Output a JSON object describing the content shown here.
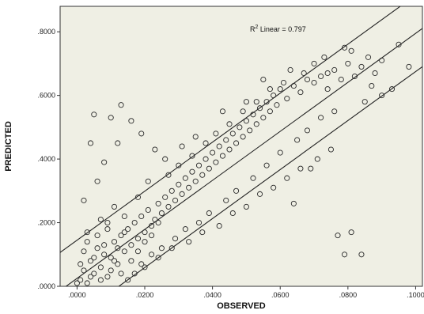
{
  "chart_data": {
    "type": "scatter",
    "xlabel": "OBSERVED",
    "ylabel": "PREDICTED",
    "xlim": [
      -0.005,
      0.102
    ],
    "ylim": [
      0,
      0.88
    ],
    "x_ticks": [
      {
        "value": 0.0,
        "label": ".0000"
      },
      {
        "value": 0.02,
        "label": ".0200"
      },
      {
        "value": 0.04,
        "label": ".0400"
      },
      {
        "value": 0.06,
        "label": ".0600"
      },
      {
        "value": 0.08,
        "label": ".0800"
      },
      {
        "value": 0.1,
        "label": ".1000"
      }
    ],
    "y_ticks": [
      {
        "value": 0.0,
        "label": ".0000"
      },
      {
        "value": 0.2,
        "label": ".2000"
      },
      {
        "value": 0.4,
        "label": ".4000"
      },
      {
        "value": 0.6,
        "label": ".6000"
      },
      {
        "value": 0.8,
        "label": ".8000"
      }
    ],
    "annotation": {
      "prefix": "R",
      "superscript": "2",
      "text": " Linear = 0.797"
    },
    "fit": {
      "slope": 7.7,
      "intercept": 0.025,
      "band_offset": 0.12
    },
    "grid": false,
    "colors": {
      "plot_background": "#efefe4",
      "marker": "#2a2a2a",
      "line": "#222222"
    },
    "points": [
      [
        0.001,
        0.02
      ],
      [
        0.002,
        0.05
      ],
      [
        0.003,
        0.01
      ],
      [
        0.004,
        0.08
      ],
      [
        0.005,
        0.04
      ],
      [
        0.006,
        0.12
      ],
      [
        0.007,
        0.06
      ],
      [
        0.008,
        0.1
      ],
      [
        0.009,
        0.03
      ],
      [
        0.01,
        0.09
      ],
      [
        0.011,
        0.14
      ],
      [
        0.012,
        0.07
      ],
      [
        0.013,
        0.16
      ],
      [
        0.014,
        0.11
      ],
      [
        0.015,
        0.18
      ],
      [
        0.016,
        0.13
      ],
      [
        0.017,
        0.2
      ],
      [
        0.018,
        0.15
      ],
      [
        0.019,
        0.22
      ],
      [
        0.02,
        0.17
      ],
      [
        0.021,
        0.24
      ],
      [
        0.022,
        0.19
      ],
      [
        0.023,
        0.21
      ],
      [
        0.024,
        0.26
      ],
      [
        0.025,
        0.23
      ],
      [
        0.026,
        0.28
      ],
      [
        0.027,
        0.25
      ],
      [
        0.028,
        0.3
      ],
      [
        0.029,
        0.27
      ],
      [
        0.03,
        0.32
      ],
      [
        0.031,
        0.29
      ],
      [
        0.032,
        0.34
      ],
      [
        0.033,
        0.31
      ],
      [
        0.034,
        0.36
      ],
      [
        0.035,
        0.33
      ],
      [
        0.036,
        0.38
      ],
      [
        0.037,
        0.35
      ],
      [
        0.038,
        0.4
      ],
      [
        0.039,
        0.37
      ],
      [
        0.04,
        0.42
      ],
      [
        0.041,
        0.39
      ],
      [
        0.042,
        0.44
      ],
      [
        0.043,
        0.41
      ],
      [
        0.044,
        0.46
      ],
      [
        0.045,
        0.43
      ],
      [
        0.046,
        0.48
      ],
      [
        0.047,
        0.45
      ],
      [
        0.048,
        0.5
      ],
      [
        0.049,
        0.47
      ],
      [
        0.05,
        0.52
      ],
      [
        0.051,
        0.49
      ],
      [
        0.052,
        0.54
      ],
      [
        0.053,
        0.51
      ],
      [
        0.054,
        0.56
      ],
      [
        0.055,
        0.53
      ],
      [
        0.056,
        0.58
      ],
      [
        0.057,
        0.55
      ],
      [
        0.058,
        0.6
      ],
      [
        0.059,
        0.57
      ],
      [
        0.06,
        0.62
      ],
      [
        0.062,
        0.59
      ],
      [
        0.064,
        0.63
      ],
      [
        0.066,
        0.61
      ],
      [
        0.068,
        0.65
      ],
      [
        0.07,
        0.64
      ],
      [
        0.072,
        0.66
      ],
      [
        0.074,
        0.62
      ],
      [
        0.076,
        0.68
      ],
      [
        0.078,
        0.65
      ],
      [
        0.08,
        0.7
      ],
      [
        0.082,
        0.66
      ],
      [
        0.084,
        0.69
      ],
      [
        0.086,
        0.72
      ],
      [
        0.088,
        0.67
      ],
      [
        0.09,
        0.71
      ],
      [
        0.095,
        0.76
      ],
      [
        0.098,
        0.69
      ],
      [
        0.093,
        0.62
      ],
      [
        0.079,
        0.75
      ],
      [
        0.081,
        0.74
      ],
      [
        0.002,
        0.27
      ],
      [
        0.004,
        0.45
      ],
      [
        0.005,
        0.54
      ],
      [
        0.01,
        0.53
      ],
      [
        0.013,
        0.57
      ],
      [
        0.016,
        0.52
      ],
      [
        0.008,
        0.39
      ],
      [
        0.006,
        0.33
      ],
      [
        0.012,
        0.45
      ],
      [
        0.019,
        0.48
      ],
      [
        0.023,
        0.43
      ],
      [
        0.026,
        0.4
      ],
      [
        0.031,
        0.44
      ],
      [
        0.035,
        0.47
      ],
      [
        0.043,
        0.55
      ],
      [
        0.05,
        0.58
      ],
      [
        0.055,
        0.65
      ],
      [
        0.063,
        0.68
      ],
      [
        0.07,
        0.7
      ],
      [
        0.073,
        0.72
      ],
      [
        0.02,
        0.06
      ],
      [
        0.024,
        0.09
      ],
      [
        0.028,
        0.12
      ],
      [
        0.033,
        0.14
      ],
      [
        0.037,
        0.17
      ],
      [
        0.042,
        0.19
      ],
      [
        0.046,
        0.23
      ],
      [
        0.05,
        0.25
      ],
      [
        0.054,
        0.29
      ],
      [
        0.058,
        0.31
      ],
      [
        0.062,
        0.34
      ],
      [
        0.066,
        0.37
      ],
      [
        0.071,
        0.4
      ],
      [
        0.075,
        0.43
      ],
      [
        0.077,
        0.16
      ],
      [
        0.079,
        0.1
      ],
      [
        0.084,
        0.1
      ],
      [
        0.081,
        0.17
      ],
      [
        0.064,
        0.26
      ],
      [
        0.069,
        0.37
      ],
      [
        0.015,
        0.02
      ],
      [
        0.017,
        0.04
      ],
      [
        0.019,
        0.07
      ],
      [
        0.022,
        0.1
      ],
      [
        0.025,
        0.12
      ],
      [
        0.029,
        0.15
      ],
      [
        0.032,
        0.18
      ],
      [
        0.036,
        0.2
      ],
      [
        0.039,
        0.23
      ],
      [
        0.044,
        0.27
      ],
      [
        0.047,
        0.3
      ],
      [
        0.052,
        0.34
      ],
      [
        0.056,
        0.38
      ],
      [
        0.06,
        0.42
      ],
      [
        0.065,
        0.46
      ],
      [
        0.068,
        0.49
      ],
      [
        0.072,
        0.53
      ],
      [
        0.076,
        0.55
      ],
      [
        0.085,
        0.58
      ],
      [
        0.09,
        0.6
      ],
      [
        0.003,
        0.17
      ],
      [
        0.007,
        0.21
      ],
      [
        0.009,
        0.18
      ],
      [
        0.011,
        0.25
      ],
      [
        0.014,
        0.22
      ],
      [
        0.018,
        0.28
      ],
      [
        0.021,
        0.33
      ],
      [
        0.027,
        0.35
      ],
      [
        0.03,
        0.38
      ],
      [
        0.034,
        0.41
      ],
      [
        0.038,
        0.45
      ],
      [
        0.041,
        0.48
      ],
      [
        0.045,
        0.51
      ],
      [
        0.049,
        0.55
      ],
      [
        0.053,
        0.58
      ],
      [
        0.057,
        0.62
      ],
      [
        0.061,
        0.64
      ],
      [
        0.067,
        0.67
      ],
      [
        0.074,
        0.67
      ],
      [
        0.087,
        0.63
      ],
      [
        0.0,
        0.01
      ],
      [
        0.001,
        0.07
      ],
      [
        0.002,
        0.11
      ],
      [
        0.003,
        0.14
      ],
      [
        0.004,
        0.03
      ],
      [
        0.005,
        0.09
      ],
      [
        0.006,
        0.16
      ],
      [
        0.007,
        0.02
      ],
      [
        0.008,
        0.13
      ],
      [
        0.009,
        0.2
      ],
      [
        0.01,
        0.05
      ],
      [
        0.011,
        0.08
      ],
      [
        0.012,
        0.12
      ],
      [
        0.013,
        0.04
      ],
      [
        0.014,
        0.17
      ],
      [
        0.016,
        0.08
      ],
      [
        0.018,
        0.11
      ],
      [
        0.02,
        0.14
      ],
      [
        0.022,
        0.16
      ],
      [
        0.024,
        0.2
      ]
    ]
  }
}
